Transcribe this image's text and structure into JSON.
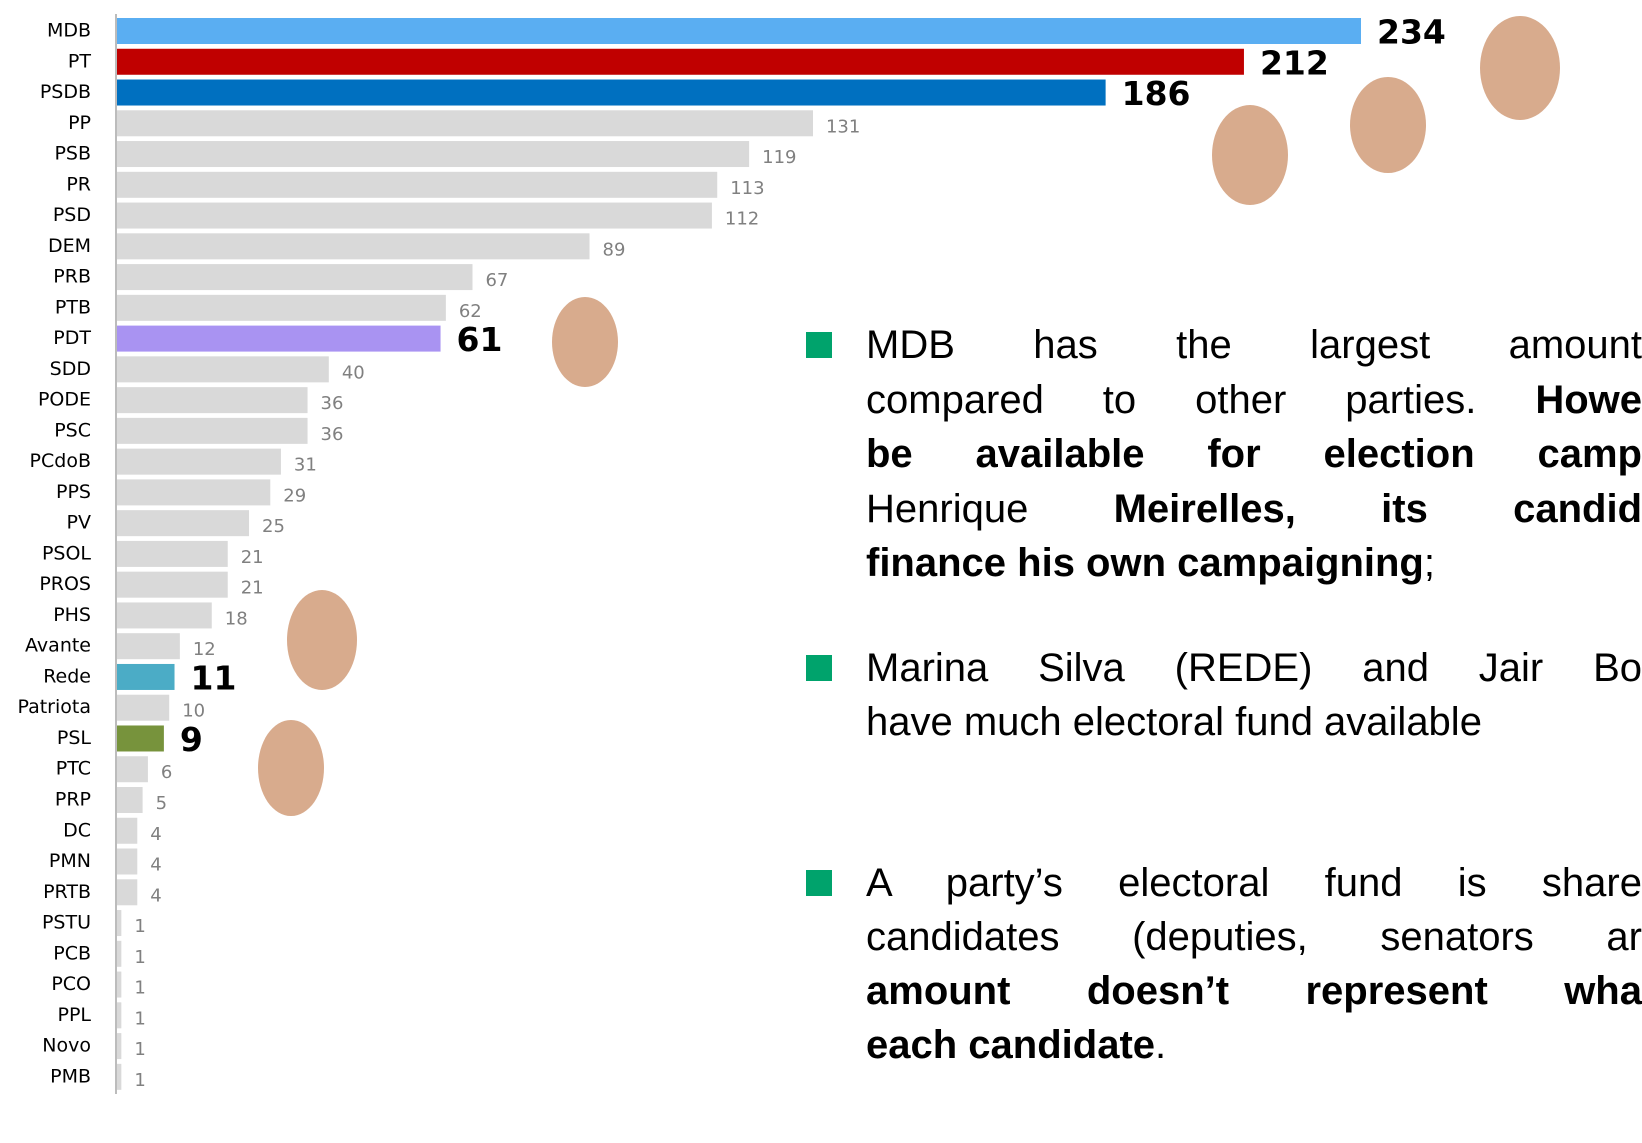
{
  "chart_data": {
    "type": "barh",
    "categories": [
      "MDB",
      "PT",
      "PSDB",
      "PP",
      "PSB",
      "PR",
      "PSD",
      "DEM",
      "PRB",
      "PTB",
      "PDT",
      "SDD",
      "PODE",
      "PSC",
      "PCdoB",
      "PPS",
      "PV",
      "PSOL",
      "PROS",
      "PHS",
      "Avante",
      "Rede",
      "Patriota",
      "PSL",
      "PTC",
      "PRP",
      "DC",
      "PMN",
      "PRTB",
      "PSTU",
      "PCB",
      "PCO",
      "PPL",
      "Novo",
      "PMB"
    ],
    "values": [
      234,
      212,
      186,
      131,
      119,
      113,
      112,
      89,
      67,
      62,
      61,
      40,
      36,
      36,
      31,
      29,
      25,
      21,
      21,
      18,
      12,
      11,
      10,
      9,
      6,
      5,
      4,
      4,
      4,
      1,
      1,
      1,
      1,
      1,
      1
    ],
    "color": "#d9d9d9",
    "colors": [
      "#5aaef2",
      "#c00000",
      "#0070c0",
      "#d9d9d9",
      "#d9d9d9",
      "#d9d9d9",
      "#d9d9d9",
      "#d9d9d9",
      "#d9d9d9",
      "#d9d9d9",
      "#a993f2",
      "#d9d9d9",
      "#d9d9d9",
      "#d9d9d9",
      "#d9d9d9",
      "#d9d9d9",
      "#d9d9d9",
      "#d9d9d9",
      "#d9d9d9",
      "#d9d9d9",
      "#d9d9d9",
      "#4bacc6",
      "#d9d9d9",
      "#77933c",
      "#d9d9d9",
      "#d9d9d9",
      "#d9d9d9",
      "#d9d9d9",
      "#d9d9d9",
      "#d9d9d9",
      "#d9d9d9",
      "#d9d9d9",
      "#d9d9d9",
      "#d9d9d9",
      "#d9d9d9"
    ],
    "xlim": [
      0,
      234
    ]
  },
  "bullets": [
    {
      "lines": [
        {
          "segments": [
            {
              "text": "MDB has the largest amount",
              "bold": false
            }
          ]
        },
        {
          "segments": [
            {
              "text": "compared to other parties. ",
              "bold": false
            },
            {
              "text": "Howe",
              "bold": true
            }
          ]
        },
        {
          "segments": [
            {
              "text": "be available for election camp",
              "bold": true
            }
          ]
        },
        {
          "segments": [
            {
              "text": "Henrique ",
              "bold": false
            },
            {
              "text": "Meirelles, its candid",
              "bold": true
            }
          ]
        },
        {
          "segments": [
            {
              "text": "finance his own campaigning",
              "bold": true
            },
            {
              "text": ";",
              "bold": false
            }
          ]
        }
      ]
    },
    {
      "lines": [
        {
          "segments": [
            {
              "text": "Marina Silva (REDE) and Jair Bo",
              "bold": false
            }
          ]
        },
        {
          "segments": [
            {
              "text": "have much electoral fund available",
              "bold": false
            }
          ]
        }
      ]
    },
    {
      "lines": [
        {
          "segments": [
            {
              "text": "A party’s electoral fund is share",
              "bold": false
            }
          ]
        },
        {
          "segments": [
            {
              "text": "candidates (deputies, senators ar",
              "bold": false
            }
          ]
        },
        {
          "segments": [
            {
              "text": "amount doesn’t represent wha",
              "bold": true
            }
          ]
        },
        {
          "segments": [
            {
              "text": "each candidate",
              "bold": true
            },
            {
              "text": ".",
              "bold": false
            }
          ]
        }
      ]
    }
  ]
}
